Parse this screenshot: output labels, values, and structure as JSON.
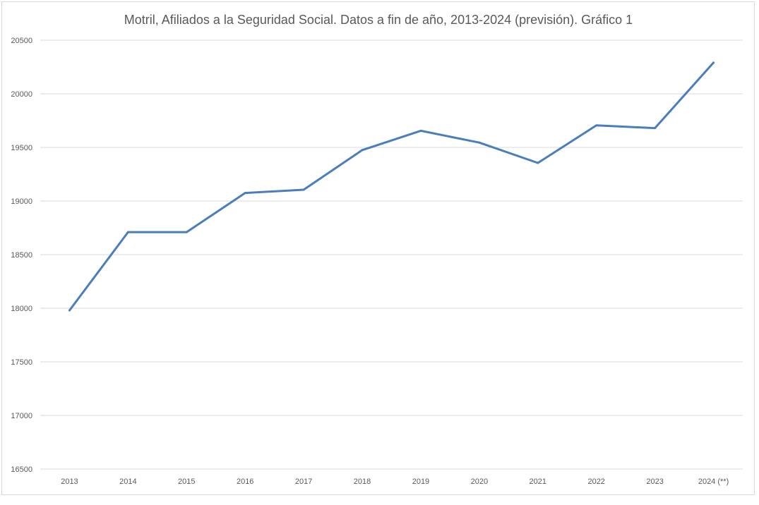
{
  "chart_data": {
    "type": "line",
    "title": "Motril, Afiliados a la Seguridad Social. Datos a fin de año, 2013-2024  (previsión). Gráfico 1",
    "xlabel": "",
    "ylabel": "",
    "categories": [
      "2013",
      "2014",
      "2015",
      "2016",
      "2017",
      "2018",
      "2019",
      "2020",
      "2021",
      "2022",
      "2023",
      "2024 (**)"
    ],
    "series": [
      {
        "values": [
          17980,
          18710,
          18710,
          19075,
          19105,
          19475,
          19655,
          19545,
          19355,
          19705,
          19680,
          20290
        ],
        "color": "#4a7ebb"
      }
    ],
    "ylim": [
      16500,
      20500
    ],
    "yticks": [
      16500,
      17000,
      17500,
      18000,
      18500,
      19000,
      19500,
      20000,
      20500
    ],
    "grid": true,
    "legend": "none"
  }
}
